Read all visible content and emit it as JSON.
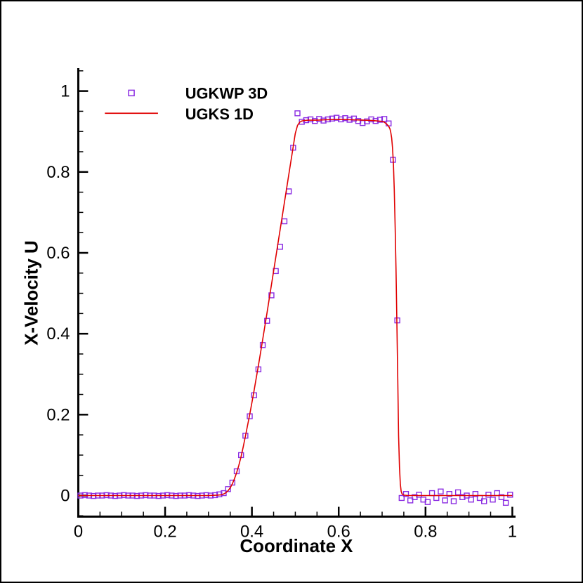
{
  "chart_data": {
    "type": "line",
    "title": "",
    "xlabel": "Coordinate X",
    "ylabel": "X-Velocity U",
    "xlim": [
      0,
      1.005
    ],
    "ylim": [
      -0.052,
      1.054
    ],
    "x_ticks": [
      0,
      0.2,
      0.4,
      0.6,
      0.8,
      1
    ],
    "x_tick_labels": [
      "0",
      "0.2",
      "0.4",
      "0.6",
      "0.8",
      "1"
    ],
    "y_ticks": [
      0,
      0.2,
      0.4,
      0.6,
      0.8,
      1
    ],
    "y_tick_labels": [
      "0",
      "0.2",
      "0.4",
      "0.6",
      "0.8",
      "1"
    ],
    "minor_tick_step": 0.05,
    "grid": false,
    "legend_position": "top-left",
    "series": [
      {
        "name": "UGKWP 3D",
        "type": "scatter",
        "marker": "open-square",
        "color": "#8A2BE2",
        "x": [
          0.005,
          0.015,
          0.025,
          0.035,
          0.045,
          0.055,
          0.065,
          0.075,
          0.085,
          0.095,
          0.105,
          0.115,
          0.125,
          0.135,
          0.145,
          0.155,
          0.165,
          0.175,
          0.185,
          0.195,
          0.205,
          0.215,
          0.225,
          0.235,
          0.245,
          0.255,
          0.265,
          0.275,
          0.285,
          0.295,
          0.305,
          0.315,
          0.325,
          0.335,
          0.345,
          0.355,
          0.365,
          0.375,
          0.385,
          0.395,
          0.405,
          0.415,
          0.425,
          0.435,
          0.445,
          0.455,
          0.465,
          0.475,
          0.485,
          0.495,
          0.505,
          0.515,
          0.525,
          0.535,
          0.545,
          0.555,
          0.565,
          0.575,
          0.585,
          0.595,
          0.605,
          0.615,
          0.625,
          0.635,
          0.645,
          0.655,
          0.665,
          0.675,
          0.685,
          0.695,
          0.705,
          0.715,
          0.725,
          0.735,
          0.745,
          0.755,
          0.765,
          0.775,
          0.785,
          0.795,
          0.805,
          0.815,
          0.825,
          0.835,
          0.845,
          0.855,
          0.865,
          0.875,
          0.885,
          0.895,
          0.905,
          0.915,
          0.925,
          0.935,
          0.945,
          0.955,
          0.965,
          0.975,
          0.985,
          0.995
        ],
        "y": [
          0.0,
          0.001,
          0.0,
          -0.001,
          0.0,
          0.0,
          0.001,
          0.0,
          -0.001,
          0.0,
          0.001,
          0.0,
          0.0,
          -0.001,
          0.0,
          0.001,
          0.0,
          0.0,
          -0.001,
          0.0,
          0.001,
          0.0,
          -0.001,
          0.0,
          0.0,
          0.001,
          0.0,
          -0.001,
          0.0,
          0.001,
          0.0,
          0.001,
          0.003,
          0.006,
          0.016,
          0.032,
          0.06,
          0.1,
          0.148,
          0.196,
          0.248,
          0.312,
          0.372,
          0.432,
          0.495,
          0.555,
          0.615,
          0.678,
          0.752,
          0.86,
          0.945,
          0.924,
          0.928,
          0.93,
          0.926,
          0.931,
          0.927,
          0.93,
          0.932,
          0.934,
          0.93,
          0.933,
          0.929,
          0.932,
          0.926,
          0.921,
          0.925,
          0.93,
          0.926,
          0.929,
          0.931,
          0.92,
          0.83,
          0.433,
          -0.006,
          0.004,
          -0.012,
          -0.004,
          0.002,
          -0.01,
          -0.016,
          0.006,
          -0.006,
          0.01,
          -0.012,
          0.004,
          -0.014,
          0.008,
          -0.004,
          0.0,
          -0.01,
          0.004,
          -0.006,
          -0.014,
          0.002,
          -0.01,
          0.006,
          -0.004,
          -0.018,
          0.002
        ]
      },
      {
        "name": "UGKS 1D",
        "type": "line",
        "color": "#E00000",
        "x": [
          0.0,
          0.05,
          0.1,
          0.15,
          0.2,
          0.25,
          0.3,
          0.32,
          0.33,
          0.335,
          0.34,
          0.345,
          0.35,
          0.355,
          0.36,
          0.365,
          0.37,
          0.375,
          0.38,
          0.385,
          0.39,
          0.395,
          0.4,
          0.405,
          0.41,
          0.415,
          0.42,
          0.425,
          0.43,
          0.435,
          0.44,
          0.445,
          0.45,
          0.455,
          0.46,
          0.465,
          0.47,
          0.475,
          0.48,
          0.485,
          0.49,
          0.495,
          0.5,
          0.505,
          0.51,
          0.515,
          0.52,
          0.53,
          0.55,
          0.57,
          0.6,
          0.63,
          0.66,
          0.68,
          0.7,
          0.705,
          0.71,
          0.715,
          0.718,
          0.72,
          0.722,
          0.724,
          0.726,
          0.728,
          0.73,
          0.732,
          0.734,
          0.736,
          0.738,
          0.74,
          0.742,
          0.744,
          0.746,
          0.75,
          0.76,
          0.8,
          0.85,
          0.9,
          0.95,
          1.0
        ],
        "y": [
          0.0,
          0.0,
          0.0,
          0.0,
          0.0,
          0.0,
          0.0,
          0.001,
          0.002,
          0.004,
          0.007,
          0.012,
          0.019,
          0.029,
          0.042,
          0.057,
          0.075,
          0.096,
          0.12,
          0.146,
          0.173,
          0.201,
          0.23,
          0.26,
          0.291,
          0.322,
          0.354,
          0.387,
          0.42,
          0.453,
          0.487,
          0.521,
          0.555,
          0.589,
          0.623,
          0.657,
          0.691,
          0.725,
          0.759,
          0.793,
          0.827,
          0.861,
          0.895,
          0.915,
          0.923,
          0.926,
          0.927,
          0.928,
          0.928,
          0.929,
          0.93,
          0.929,
          0.928,
          0.927,
          0.925,
          0.923,
          0.919,
          0.913,
          0.907,
          0.898,
          0.884,
          0.86,
          0.82,
          0.757,
          0.663,
          0.56,
          0.433,
          0.29,
          0.148,
          0.07,
          0.028,
          0.01,
          0.004,
          0.001,
          0.0,
          0.0,
          0.0,
          0.0,
          0.0,
          0.0
        ]
      }
    ]
  },
  "colors": {
    "axis": "#000000",
    "background": "#ffffff",
    "marker_series": "#8A2BE2",
    "line_series": "#E00000"
  }
}
